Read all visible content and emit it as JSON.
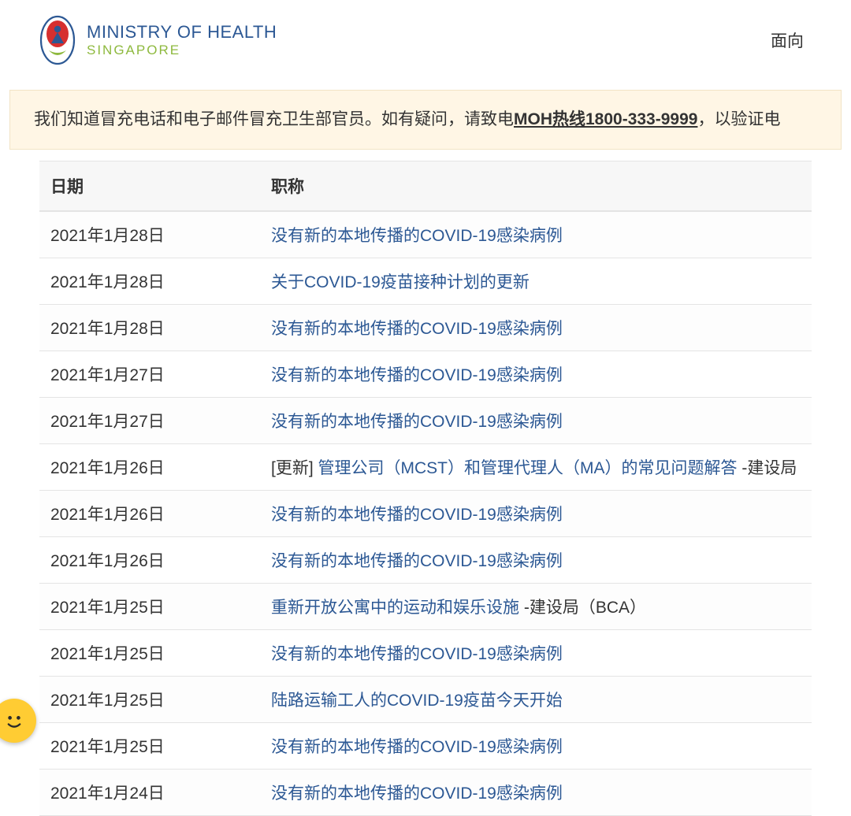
{
  "header": {
    "title": "MINISTRY OF HEALTH",
    "subtitle": "SINGAPORE",
    "nav_text": "面向",
    "logo_colors": {
      "ring": "#2c5894",
      "center_red": "#d62f2f",
      "leaf_green": "#8eb93e",
      "figure": "#2c5894"
    }
  },
  "notice": {
    "text_before": "我们知道冒充电话和电子邮件冒充卫生部官员。如有疑问，请致电",
    "link_text": "MOH热线1800-333-9999",
    "text_after": "，以验证电"
  },
  "table": {
    "headers": {
      "date": "日期",
      "title": "职称"
    },
    "rows": [
      {
        "date": "2021年1月28日",
        "prefix": "",
        "link": "没有新的本地传播的COVID-19感染病例",
        "suffix": ""
      },
      {
        "date": "2021年1月28日",
        "prefix": "",
        "link": "关于COVID-19疫苗接种计划的更新",
        "suffix": ""
      },
      {
        "date": "2021年1月28日",
        "prefix": "",
        "link": "没有新的本地传播的COVID-19感染病例",
        "suffix": ""
      },
      {
        "date": "2021年1月27日",
        "prefix": "",
        "link": "没有新的本地传播的COVID-19感染病例",
        "suffix": ""
      },
      {
        "date": "2021年1月27日",
        "prefix": "",
        "link": "没有新的本地传播的COVID-19感染病例",
        "suffix": ""
      },
      {
        "date": "2021年1月26日",
        "prefix": "[更新] ",
        "link": "管理公司（MCST）和管理代理人（MA）的常见问题解答",
        "suffix": " -建设局"
      },
      {
        "date": "2021年1月26日",
        "prefix": "",
        "link": "没有新的本地传播的COVID-19感染病例",
        "suffix": ""
      },
      {
        "date": "2021年1月26日",
        "prefix": "",
        "link": "没有新的本地传播的COVID-19感染病例",
        "suffix": ""
      },
      {
        "date": "2021年1月25日",
        "prefix": "",
        "link": "重新开放公寓中的运动和娱乐设施",
        "suffix": " -建设局（BCA）"
      },
      {
        "date": "2021年1月25日",
        "prefix": "",
        "link": "没有新的本地传播的COVID-19感染病例",
        "suffix": ""
      },
      {
        "date": "2021年1月25日",
        "prefix": "",
        "link": "陆路运输工人的COVID-19疫苗今天开始",
        "suffix": ""
      },
      {
        "date": "2021年1月25日",
        "prefix": "",
        "link": "没有新的本地传播的COVID-19感染病例",
        "suffix": ""
      },
      {
        "date": "2021年1月24日",
        "prefix": "",
        "link": "没有新的本地传播的COVID-19感染病例",
        "suffix": ""
      }
    ]
  },
  "chat": {
    "face": "smiley"
  },
  "styling": {
    "link_color": "#2c5894",
    "notice_bg": "#fff6e5",
    "notice_border": "#f2e4c5",
    "header_bg": "#f7f7f7",
    "row_border": "#e4e4e4",
    "font_size_body": 21,
    "font_size_title": 22,
    "font_size_sub": 17
  }
}
